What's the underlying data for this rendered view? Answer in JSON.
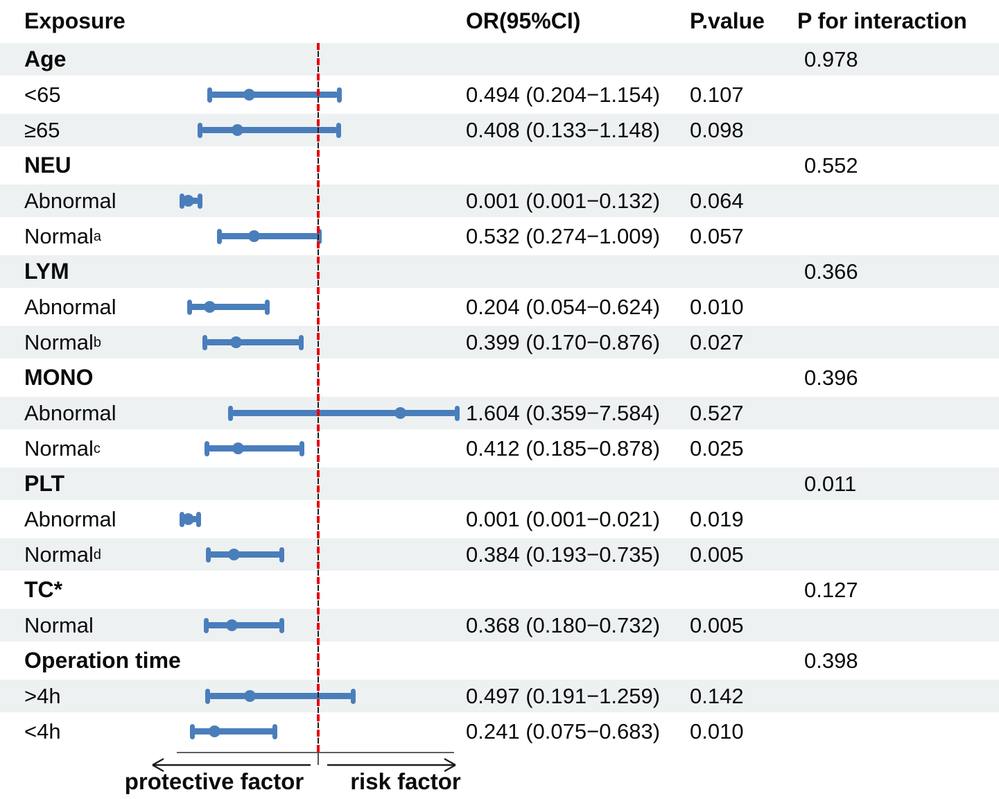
{
  "header": {
    "exposure": "Exposure",
    "or_ci": "OR(95%CI)",
    "p_value": "P.value",
    "p_interaction": "P for interaction"
  },
  "axis": {
    "left_label": "protective factor",
    "right_label": "risk factor"
  },
  "colors": {
    "bar_blue": "#4a7ebb",
    "reference_red": "#e8000a",
    "reference_black": "#1c1c1c",
    "row_stripe": "#edf1f2",
    "text": "#0b0b0b"
  },
  "chart_data": {
    "type": "forest",
    "title": "",
    "x_axis": {
      "scale": "linear",
      "reference_value": 1,
      "visible_range": [
        0.0,
        2.02
      ],
      "clipped_upper_marked": true
    },
    "legend_position": "none",
    "rows": [
      {
        "kind": "group",
        "label": "Age",
        "sup": "",
        "p_interaction": "0.978"
      },
      {
        "kind": "item",
        "label": "<65",
        "sup": "",
        "or": 0.494,
        "lo": 0.204,
        "hi": 1.154,
        "or_ci": "0.494 (0.204−1.154)",
        "p": "0.107"
      },
      {
        "kind": "item",
        "label": "≥65",
        "sup": "",
        "or": 0.408,
        "lo": 0.133,
        "hi": 1.148,
        "or_ci": "0.408 (0.133−1.148)",
        "p": "0.098"
      },
      {
        "kind": "group",
        "label": "NEU",
        "sup": "",
        "p_interaction": "0.552"
      },
      {
        "kind": "item",
        "label": "Abnormal",
        "sup": "",
        "or": 0.001,
        "lo": 0.001,
        "hi": 0.132,
        "or_ci": "0.001 (0.001−0.132)",
        "p": "0.064"
      },
      {
        "kind": "item",
        "label": "Normal",
        "sup": "a",
        "or": 0.532,
        "lo": 0.274,
        "hi": 1.009,
        "or_ci": "0.532 (0.274−1.009)",
        "p": "0.057"
      },
      {
        "kind": "group",
        "label": "LYM",
        "sup": "",
        "p_interaction": "0.366"
      },
      {
        "kind": "item",
        "label": "Abnormal",
        "sup": "",
        "or": 0.204,
        "lo": 0.054,
        "hi": 0.624,
        "or_ci": "0.204 (0.054−0.624)",
        "p": "0.010"
      },
      {
        "kind": "item",
        "label": "Normal",
        "sup": "b",
        "or": 0.399,
        "lo": 0.17,
        "hi": 0.876,
        "or_ci": "0.399 (0.170−0.876)",
        "p": "0.027"
      },
      {
        "kind": "group",
        "label": "MONO",
        "sup": "",
        "p_interaction": "0.396"
      },
      {
        "kind": "item",
        "label": "Abnormal",
        "sup": "",
        "or": 1.604,
        "lo": 0.359,
        "hi": 7.584,
        "or_ci": "1.604 (0.359−7.584)",
        "p": "0.527"
      },
      {
        "kind": "item",
        "label": "Normal",
        "sup": "c",
        "or": 0.412,
        "lo": 0.185,
        "hi": 0.878,
        "or_ci": "0.412 (0.185−0.878)",
        "p": "0.025"
      },
      {
        "kind": "group",
        "label": "PLT",
        "sup": "",
        "p_interaction": "0.011"
      },
      {
        "kind": "item",
        "label": "Abnormal",
        "sup": "",
        "or": 0.001,
        "lo": 0.001,
        "hi": 0.021,
        "or_ci": "0.001 (0.001−0.021)",
        "p": "0.019"
      },
      {
        "kind": "item",
        "label": "Normal",
        "sup": "d",
        "or": 0.384,
        "lo": 0.193,
        "hi": 0.735,
        "or_ci": "0.384 (0.193−0.735)",
        "p": "0.005"
      },
      {
        "kind": "group",
        "label": "TC*",
        "sup": "",
        "p_interaction": "0.127"
      },
      {
        "kind": "item",
        "label": "Normal",
        "sup": "",
        "or": 0.368,
        "lo": 0.18,
        "hi": 0.732,
        "or_ci": "0.368 (0.180−0.732)",
        "p": "0.005"
      },
      {
        "kind": "group",
        "label": "Operation time",
        "sup": "",
        "p_interaction": "0.398"
      },
      {
        "kind": "item",
        "label": ">4h",
        "sup": "",
        "or": 0.497,
        "lo": 0.191,
        "hi": 1.259,
        "or_ci": "0.497 (0.191−1.259)",
        "p": "0.142"
      },
      {
        "kind": "item",
        "label": "<4h",
        "sup": "",
        "or": 0.241,
        "lo": 0.075,
        "hi": 0.683,
        "or_ci": "0.241 (0.075−0.683)",
        "p": "0.010"
      }
    ]
  }
}
